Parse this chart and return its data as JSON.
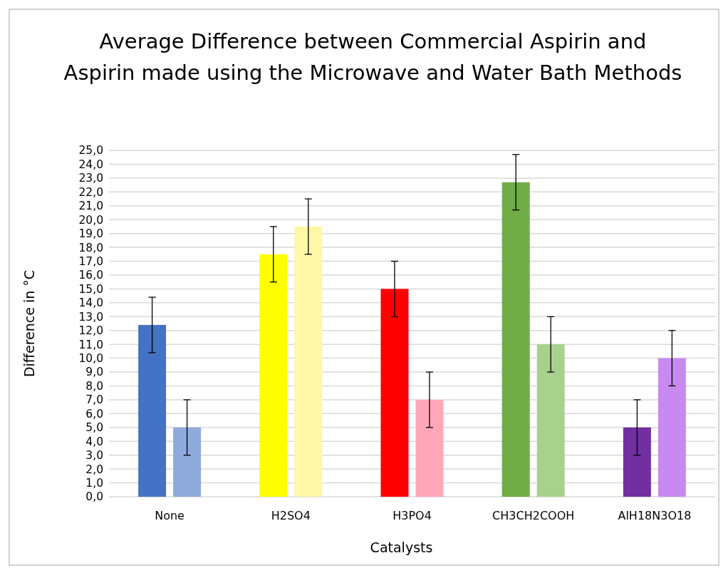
{
  "chart_data": {
    "type": "bar",
    "title": "Average Difference between Commercial Aspirin and Aspirin made using the Microwave and Water Bath Methods",
    "xlabel": "Catalysts",
    "ylabel": "Difference in °C",
    "categories": [
      "None",
      "H2SO4",
      "H3PO4",
      "CH3CH2COOH",
      "AlH18N3O18"
    ],
    "series": [
      {
        "colors": [
          "#4472c4",
          "#ffff00",
          "#ff0000",
          "#70ad47",
          "#7030a0"
        ],
        "values": [
          12.4,
          17.5,
          15.0,
          22.7,
          5.0
        ],
        "errors": [
          2,
          2,
          2,
          2,
          2
        ]
      },
      {
        "colors": [
          "#8faadc",
          "#fff7a8",
          "#ffa7b8",
          "#a9d18e",
          "#c88af0"
        ],
        "values": [
          5.0,
          19.5,
          7.0,
          11.0,
          10.0
        ],
        "errors": [
          2,
          2,
          2,
          2,
          2
        ]
      }
    ],
    "ylim": [
      0,
      25
    ],
    "yticks": [
      {
        "value": 0,
        "label": "0,0"
      },
      {
        "value": 1,
        "label": "1,0"
      },
      {
        "value": 2,
        "label": "2,0"
      },
      {
        "value": 3,
        "label": "3,0"
      },
      {
        "value": 4,
        "label": "4,0"
      },
      {
        "value": 5,
        "label": "5,0"
      },
      {
        "value": 6,
        "label": "6,0"
      },
      {
        "value": 7,
        "label": "7,0"
      },
      {
        "value": 8,
        "label": "8,0"
      },
      {
        "value": 9,
        "label": "9,0"
      },
      {
        "value": 10,
        "label": "10,0"
      },
      {
        "value": 11,
        "label": "11,0"
      },
      {
        "value": 12,
        "label": "12,0"
      },
      {
        "value": 13,
        "label": "13,0"
      },
      {
        "value": 14,
        "label": "14,0"
      },
      {
        "value": 15,
        "label": "15,0"
      },
      {
        "value": 16,
        "label": "16,0"
      },
      {
        "value": 17,
        "label": "17,0"
      },
      {
        "value": 18,
        "label": "18,0"
      },
      {
        "value": 19,
        "label": "19,0"
      },
      {
        "value": 20,
        "label": "20,0"
      },
      {
        "value": 21,
        "label": "21,0"
      },
      {
        "value": 22,
        "label": "22,0"
      },
      {
        "value": 23,
        "label": "23,0"
      },
      {
        "value": 24,
        "label": "24,0"
      },
      {
        "value": 25,
        "label": "25,0"
      }
    ],
    "grid": "y"
  }
}
